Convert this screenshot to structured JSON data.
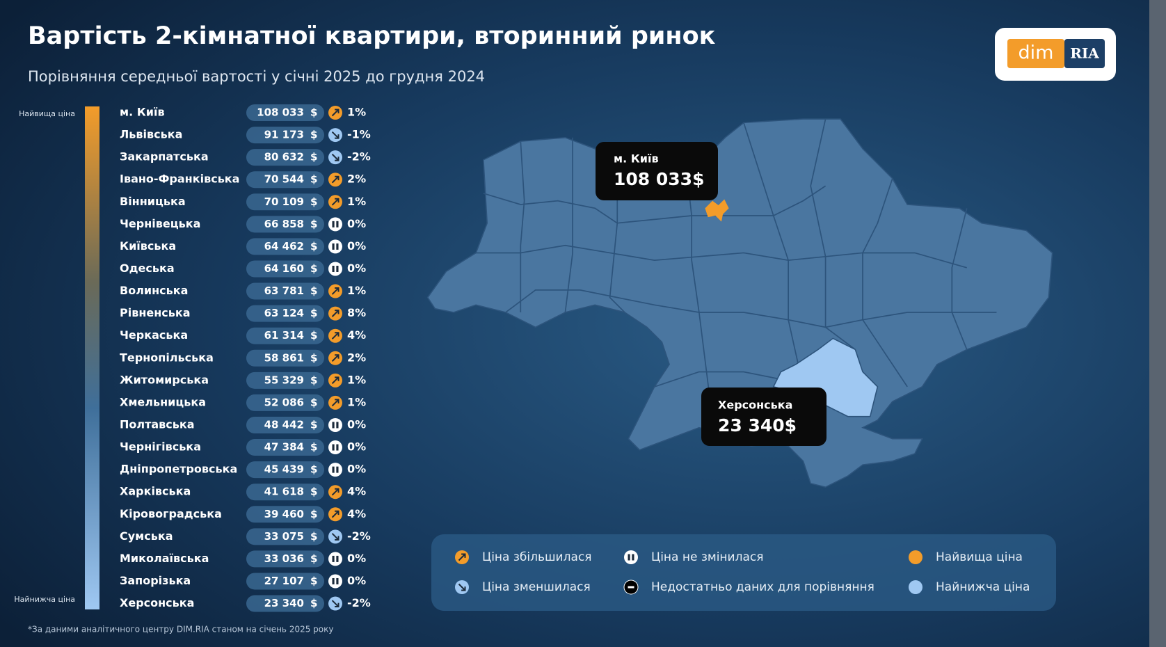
{
  "header": {
    "title": "Вартість 2-кімнатної квартири, вторинний ринок",
    "subtitle": "Порівняння середньої вартості у січні 2025 до грудня 2024",
    "logo_left": "dim",
    "logo_right": "RIA"
  },
  "scale": {
    "top": "Найвища ціна",
    "bottom": "Найнижча ціна"
  },
  "rows": [
    {
      "name": "м. Київ",
      "price": "108 033",
      "currency": "$",
      "direction": "up",
      "change": "1%"
    },
    {
      "name": "Львівська",
      "price": "91 173",
      "currency": "$",
      "direction": "down",
      "change": "-1%"
    },
    {
      "name": "Закарпатська",
      "price": "80 632",
      "currency": "$",
      "direction": "down",
      "change": "-2%"
    },
    {
      "name": "Івано-Франківська",
      "price": "70 544",
      "currency": "$",
      "direction": "up",
      "change": "2%"
    },
    {
      "name": "Вінницька",
      "price": "70 109",
      "currency": "$",
      "direction": "up",
      "change": "1%"
    },
    {
      "name": "Чернівецька",
      "price": "66 858",
      "currency": "$",
      "direction": "same",
      "change": "0%"
    },
    {
      "name": "Київська",
      "price": "64 462",
      "currency": "$",
      "direction": "same",
      "change": "0%"
    },
    {
      "name": "Одеська",
      "price": "64 160",
      "currency": "$",
      "direction": "same",
      "change": "0%"
    },
    {
      "name": "Волинська",
      "price": "63 781",
      "currency": "$",
      "direction": "up",
      "change": "1%"
    },
    {
      "name": "Рівненська",
      "price": "63 124",
      "currency": "$",
      "direction": "up",
      "change": "8%"
    },
    {
      "name": "Черкаська",
      "price": "61 314",
      "currency": "$",
      "direction": "up",
      "change": "4%"
    },
    {
      "name": "Тернопільська",
      "price": "58 861",
      "currency": "$",
      "direction": "up",
      "change": "2%"
    },
    {
      "name": "Житомирська",
      "price": "55 329",
      "currency": "$",
      "direction": "up",
      "change": "1%"
    },
    {
      "name": "Хмельницька",
      "price": "52 086",
      "currency": "$",
      "direction": "up",
      "change": "1%"
    },
    {
      "name": "Полтавська",
      "price": "48 442",
      "currency": "$",
      "direction": "same",
      "change": "0%"
    },
    {
      "name": "Чернігівська",
      "price": "47 384",
      "currency": "$",
      "direction": "same",
      "change": "0%"
    },
    {
      "name": "Дніпропетровська",
      "price": "45 439",
      "currency": "$",
      "direction": "same",
      "change": "0%"
    },
    {
      "name": "Харківська",
      "price": "41 618",
      "currency": "$",
      "direction": "up",
      "change": "4%"
    },
    {
      "name": "Кіровоградська",
      "price": "39 460",
      "currency": "$",
      "direction": "up",
      "change": "4%"
    },
    {
      "name": "Сумська",
      "price": "33 075",
      "currency": "$",
      "direction": "down",
      "change": "-2%"
    },
    {
      "name": "Миколаївська",
      "price": "33 036",
      "currency": "$",
      "direction": "same",
      "change": "0%"
    },
    {
      "name": "Запорізька",
      "price": "27 107",
      "currency": "$",
      "direction": "same",
      "change": "0%"
    },
    {
      "name": "Херсонська",
      "price": "23 340",
      "currency": "$",
      "direction": "down",
      "change": "-2%"
    }
  ],
  "callouts": [
    {
      "name": "м. Київ",
      "value": "108 033$"
    },
    {
      "name": "Херсонська",
      "value": "23 340$"
    }
  ],
  "legend": [
    {
      "icon": "up",
      "label": "Ціна збільшилася"
    },
    {
      "icon": "same",
      "label": "Ціна не змінилася"
    },
    {
      "icon": "high",
      "label": "Найвища ціна"
    },
    {
      "icon": "down",
      "label": "Ціна зменшилася"
    },
    {
      "icon": "nodata",
      "label": "Недостатньо даних для порівняння"
    },
    {
      "icon": "low",
      "label": "Найнижча ціна"
    }
  ],
  "footnote": "*За даними аналітичного центру DIM.RIA станом на січень 2025 року"
}
